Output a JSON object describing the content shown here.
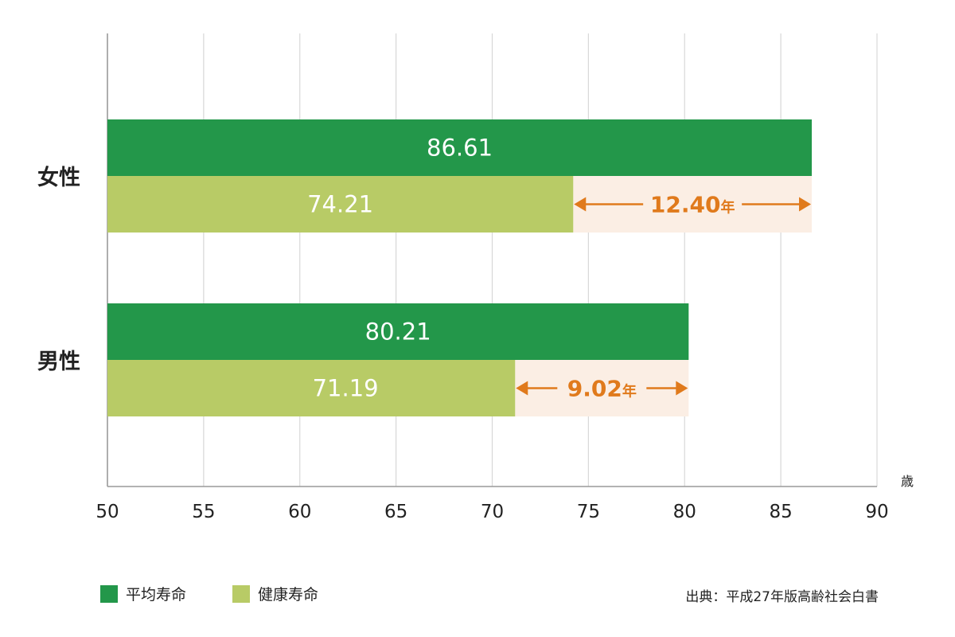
{
  "chart_data": {
    "type": "bar",
    "orientation": "horizontal",
    "categories": [
      "女性",
      "男性"
    ],
    "series": [
      {
        "name": "平均寿命",
        "values": [
          86.61,
          80.21
        ],
        "labels": [
          "86.61",
          "80.21"
        ],
        "color": "#23974a"
      },
      {
        "name": "健康寿命",
        "values": [
          74.21,
          71.19
        ],
        "labels": [
          "74.21",
          "71.19"
        ],
        "color": "#b8cb66"
      }
    ],
    "gaps": [
      {
        "category": "女性",
        "value": 12.4,
        "number": "12.40",
        "unit": "年"
      },
      {
        "category": "男性",
        "value": 9.02,
        "number": "9.02",
        "unit": "年"
      }
    ],
    "x_ticks": [
      "50",
      "55",
      "60",
      "65",
      "70",
      "75",
      "80",
      "85",
      "90"
    ],
    "xlim": [
      50,
      90
    ],
    "x_unit": "歳",
    "grid": true,
    "legend_position": "bottom-left",
    "gap_color": "#e07a1c",
    "gap_fill": "#fbeee4"
  },
  "source": "出典：平成27年版高齢社会白書"
}
